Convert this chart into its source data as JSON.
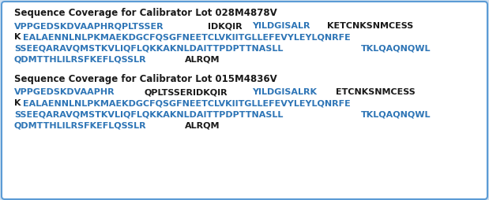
{
  "bg_color": "#cfe0f0",
  "box_color": "#ffffff",
  "border_color": "#5b9bd5",
  "title_color": "#1a1a1a",
  "blue_color": "#2e75b6",
  "dark_color": "#1a1a1a",
  "block1_title": "Sequence Coverage for Calibrator Lot 028M4878V",
  "block2_title": "Sequence Coverage for Calibrator Lot 015M4836V",
  "block1_lines": [
    [
      {
        "text": "VPPGEDSKDVAAPHRQPLTSSER",
        "color": "blue"
      },
      {
        "text": "IDKQIR",
        "color": "dark"
      },
      {
        "text": "YILDGISALR",
        "color": "blue"
      },
      {
        "text": "KETCNKSNMCESS",
        "color": "dark"
      }
    ],
    [
      {
        "text": "K",
        "color": "dark"
      },
      {
        "text": "EALAENNLNLPKMAEKDGCFQSGFNEETCLVKIITGLLEFEVYLEYLQNRFE",
        "color": "blue"
      }
    ],
    [
      {
        "text": "SSEEQARAVQMSTKVLIQFLQKKAKNLDAITTPDPTTNASLL",
        "color": "blue"
      },
      {
        "text": "TKLQAQNQWL",
        "color": "blue"
      }
    ],
    [
      {
        "text": "QDMTTHLILRSFKEFLQSSLR",
        "color": "blue"
      },
      {
        "text": "ALRQM",
        "color": "dark"
      }
    ]
  ],
  "block2_lines": [
    [
      {
        "text": "VPPGEDSKDVAAPHR",
        "color": "blue"
      },
      {
        "text": "QPLTSSERIDKQIR",
        "color": "dark"
      },
      {
        "text": "YILDGISALRK",
        "color": "blue"
      },
      {
        "text": "ETCNKSNMCESS",
        "color": "dark"
      }
    ],
    [
      {
        "text": "K",
        "color": "dark"
      },
      {
        "text": "EALAENNLNLPKMAEKDGCFQSGFNEETCLVKIITGLLEFEVYLEYLQNRFE",
        "color": "blue"
      }
    ],
    [
      {
        "text": "SSEEQARAVQMSTKVLIQFLQKKAKNLDAITTPDPTTNASLL",
        "color": "blue"
      },
      {
        "text": "TKLQAQNQWL",
        "color": "blue"
      }
    ],
    [
      {
        "text": "QDMTTHLILRSFKEFLQSSLR",
        "color": "blue"
      },
      {
        "text": "ALRQM",
        "color": "dark"
      }
    ]
  ]
}
